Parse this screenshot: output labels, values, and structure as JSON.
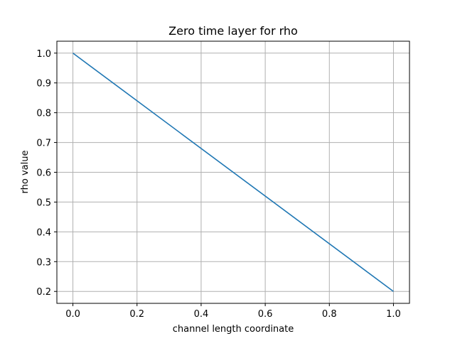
{
  "chart_data": {
    "type": "line",
    "title": "Zero time layer for rho",
    "xlabel": "channel length coordinate",
    "ylabel": "rho value",
    "xlim": [
      -0.05,
      1.05
    ],
    "ylim": [
      0.16,
      1.04
    ],
    "xticks": [
      0.0,
      0.2,
      0.4,
      0.6,
      0.8,
      1.0
    ],
    "yticks": [
      0.2,
      0.3,
      0.4,
      0.5,
      0.6,
      0.7,
      0.8,
      0.9,
      1.0
    ],
    "xtick_labels": [
      "0.0",
      "0.2",
      "0.4",
      "0.6",
      "0.8",
      "1.0"
    ],
    "ytick_labels": [
      "0.2",
      "0.3",
      "0.4",
      "0.5",
      "0.6",
      "0.7",
      "0.8",
      "0.9",
      "1.0"
    ],
    "grid": true,
    "series": [
      {
        "color": "#1f77b4",
        "x": [
          0.0,
          1.0
        ],
        "y": [
          1.0,
          0.2
        ]
      }
    ]
  }
}
